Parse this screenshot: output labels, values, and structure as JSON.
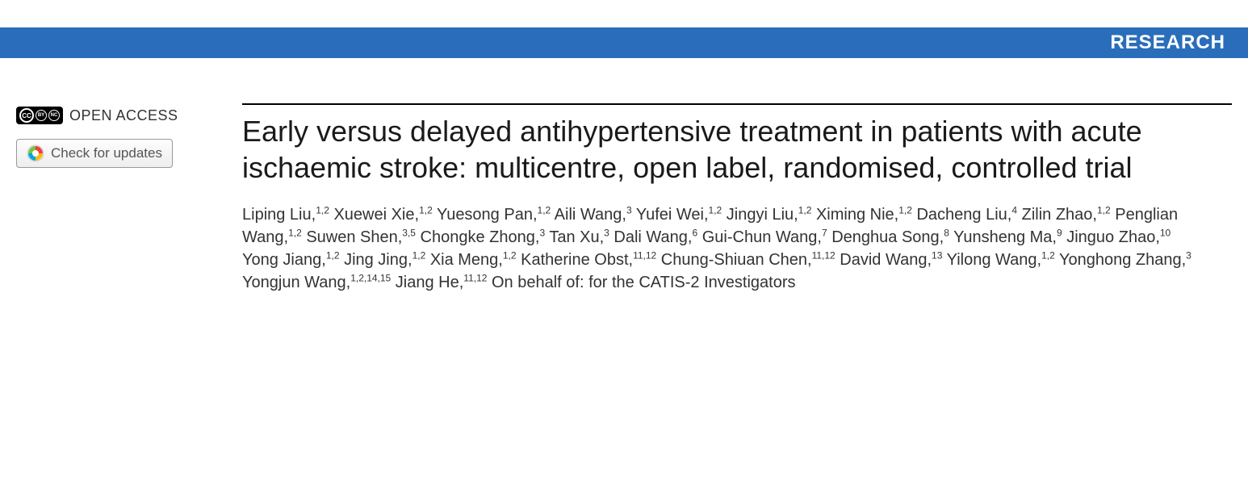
{
  "banner": {
    "label": "RESEARCH",
    "background_color": "#2a6ebb",
    "text_color": "#ffffff"
  },
  "sidebar": {
    "open_access_label": "OPEN ACCESS",
    "check_updates_label": "Check for updates"
  },
  "article": {
    "title": "Early versus delayed antihypertensive treatment in patients with acute ischaemic stroke: multicentre, open label, randomised, controlled trial",
    "authors": [
      {
        "name": "Liping Liu",
        "affil": "1,2"
      },
      {
        "name": "Xuewei Xie",
        "affil": "1,2"
      },
      {
        "name": "Yuesong Pan",
        "affil": "1,2"
      },
      {
        "name": "Aili Wang",
        "affil": "3"
      },
      {
        "name": "Yufei Wei",
        "affil": "1,2"
      },
      {
        "name": "Jingyi Liu",
        "affil": "1,2"
      },
      {
        "name": "Ximing Nie",
        "affil": "1,2"
      },
      {
        "name": "Dacheng Liu",
        "affil": "4"
      },
      {
        "name": "Zilin Zhao",
        "affil": "1,2"
      },
      {
        "name": "Penglian Wang",
        "affil": "1,2"
      },
      {
        "name": "Suwen Shen",
        "affil": "3,5"
      },
      {
        "name": "Chongke Zhong",
        "affil": "3"
      },
      {
        "name": "Tan Xu",
        "affil": "3"
      },
      {
        "name": "Dali Wang",
        "affil": "6"
      },
      {
        "name": "Gui-Chun Wang",
        "affil": "7"
      },
      {
        "name": "Denghua Song",
        "affil": "8"
      },
      {
        "name": "Yunsheng Ma",
        "affil": "9"
      },
      {
        "name": "Jinguo Zhao",
        "affil": "10"
      },
      {
        "name": "Yong Jiang",
        "affil": "1,2"
      },
      {
        "name": "Jing Jing",
        "affil": "1,2"
      },
      {
        "name": "Xia Meng",
        "affil": "1,2"
      },
      {
        "name": "Katherine Obst",
        "affil": "11,12"
      },
      {
        "name": "Chung-Shiuan Chen",
        "affil": "11,12"
      },
      {
        "name": "David Wang",
        "affil": "13"
      },
      {
        "name": "Yilong Wang",
        "affil": "1,2"
      },
      {
        "name": "Yonghong Zhang",
        "affil": "3"
      },
      {
        "name": "Yongjun Wang",
        "affil": "1,2,14,15"
      },
      {
        "name": "Jiang He",
        "affil": "11,12"
      }
    ],
    "on_behalf": "On behalf of: for the CATIS-2 Investigators"
  },
  "style": {
    "title_fontsize": 36,
    "author_fontsize": 20,
    "body_background": "#ffffff",
    "rule_color": "#000000"
  }
}
